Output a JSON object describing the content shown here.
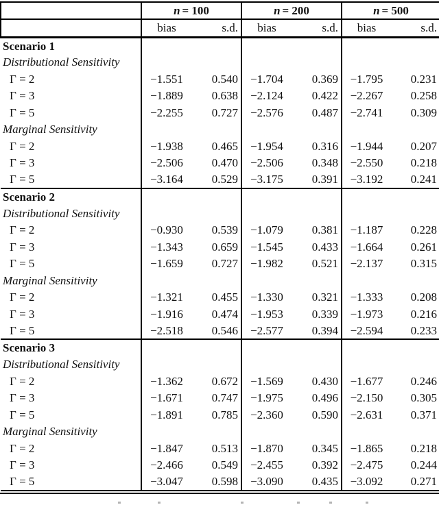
{
  "table": {
    "col_groups": [
      {
        "var": "n",
        "rest": "= 100"
      },
      {
        "var": "n",
        "rest": "= 200"
      },
      {
        "var": "n",
        "rest": "= 500"
      }
    ],
    "sub_headers": {
      "bias": "bias",
      "sd": "s.d."
    },
    "scenarios": [
      {
        "title": "Scenario 1",
        "sections": [
          {
            "title": "Distributional Sensitivity",
            "rows": [
              {
                "label": "Γ = 2",
                "values": [
                  "−1.551",
                  "0.540",
                  "−1.704",
                  "0.369",
                  "−1.795",
                  "0.231"
                ]
              },
              {
                "label": "Γ = 3",
                "values": [
                  "−1.889",
                  "0.638",
                  "−2.124",
                  "0.422",
                  "−2.267",
                  "0.258"
                ]
              },
              {
                "label": "Γ = 5",
                "values": [
                  "−2.255",
                  "0.727",
                  "−2.576",
                  "0.487",
                  "−2.741",
                  "0.309"
                ]
              }
            ]
          },
          {
            "title": "Marginal Sensitivity",
            "rows": [
              {
                "label": "Γ = 2",
                "values": [
                  "−1.938",
                  "0.465",
                  "−1.954",
                  "0.316",
                  "−1.944",
                  "0.207"
                ]
              },
              {
                "label": "Γ = 3",
                "values": [
                  "−2.506",
                  "0.470",
                  "−2.506",
                  "0.348",
                  "−2.550",
                  "0.218"
                ]
              },
              {
                "label": "Γ = 5",
                "values": [
                  "−3.164",
                  "0.529",
                  "−3.175",
                  "0.391",
                  "−3.192",
                  "0.241"
                ]
              }
            ]
          }
        ]
      },
      {
        "title": "Scenario 2",
        "sections": [
          {
            "title": "Distributional Sensitivity",
            "rows": [
              {
                "label": "Γ = 2",
                "values": [
                  "−0.930",
                  "0.539",
                  "−1.079",
                  "0.381",
                  "−1.187",
                  "0.228"
                ]
              },
              {
                "label": "Γ = 3",
                "values": [
                  "−1.343",
                  "0.659",
                  "−1.545",
                  "0.433",
                  "−1.664",
                  "0.261"
                ]
              },
              {
                "label": "Γ = 5",
                "values": [
                  "−1.659",
                  "0.727",
                  "−1.982",
                  "0.521",
                  "−2.137",
                  "0.315"
                ]
              }
            ]
          },
          {
            "title": "Marginal Sensitivity",
            "rows": [
              {
                "label": "Γ = 2",
                "values": [
                  "−1.321",
                  "0.455",
                  "−1.330",
                  "0.321",
                  "−1.333",
                  "0.208"
                ]
              },
              {
                "label": "Γ = 3",
                "values": [
                  "−1.916",
                  "0.474",
                  "−1.953",
                  "0.339",
                  "−1.973",
                  "0.216"
                ]
              },
              {
                "label": "Γ = 5",
                "values": [
                  "−2.518",
                  "0.546",
                  "−2.577",
                  "0.394",
                  "−2.594",
                  "0.233"
                ]
              }
            ]
          }
        ]
      },
      {
        "title": "Scenario 3",
        "sections": [
          {
            "title": "Distributional Sensitivity",
            "rows": [
              {
                "label": "Γ = 2",
                "values": [
                  "−1.362",
                  "0.672",
                  "−1.569",
                  "0.430",
                  "−1.677",
                  "0.246"
                ]
              },
              {
                "label": "Γ = 3",
                "values": [
                  "−1.671",
                  "0.747",
                  "−1.975",
                  "0.496",
                  "−2.150",
                  "0.305"
                ]
              },
              {
                "label": "Γ = 5",
                "values": [
                  "−1.891",
                  "0.785",
                  "−2.360",
                  "0.590",
                  "−2.631",
                  "0.371"
                ]
              }
            ]
          },
          {
            "title": "Marginal Sensitivity",
            "rows": [
              {
                "label": "Γ = 2",
                "values": [
                  "−1.847",
                  "0.513",
                  "−1.870",
                  "0.345",
                  "−1.865",
                  "0.218"
                ]
              },
              {
                "label": "Γ = 3",
                "values": [
                  "−2.466",
                  "0.549",
                  "−2.455",
                  "0.392",
                  "−2.475",
                  "0.244"
                ]
              },
              {
                "label": "Γ = 5",
                "values": [
                  "−3.047",
                  "0.598",
                  "−3.090",
                  "0.435",
                  "−3.092",
                  "0.271"
                ]
              }
            ]
          }
        ]
      }
    ]
  }
}
